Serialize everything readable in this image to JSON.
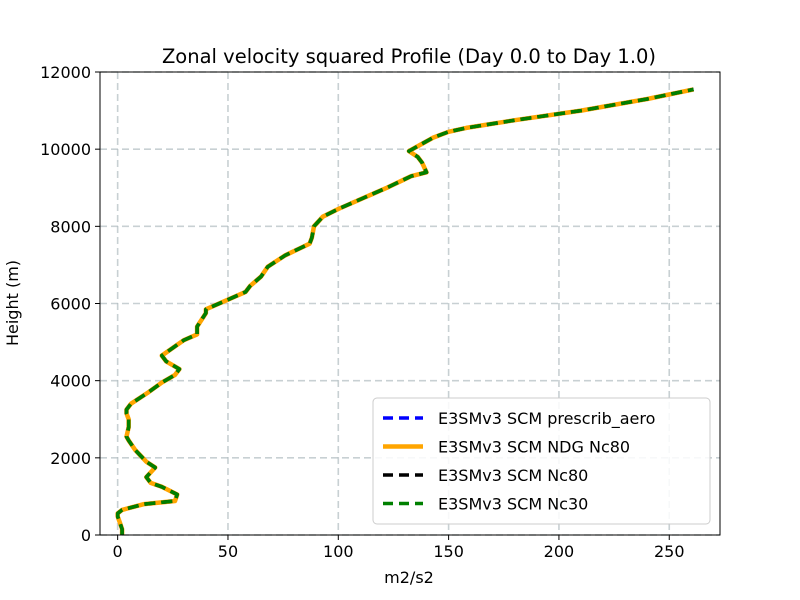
{
  "chart_data": {
    "type": "line",
    "title": "Zonal velocity squared Profile (Day 0.0 to Day 1.0)",
    "xlabel": "m2/s2",
    "ylabel": "Height (m)",
    "xlim": [
      -8,
      273
    ],
    "ylim": [
      0,
      12000
    ],
    "xticks": [
      0,
      50,
      100,
      150,
      200,
      250
    ],
    "yticks": [
      0,
      2000,
      4000,
      6000,
      8000,
      10000,
      12000
    ],
    "grid": true,
    "legend_position": "lower-right",
    "profile": {
      "x": [
        2,
        2,
        1,
        0,
        0,
        2,
        12,
        26,
        27,
        20,
        15,
        13,
        17,
        13,
        8,
        5,
        4,
        5,
        5,
        4,
        4,
        6,
        14,
        20,
        26,
        28,
        22,
        20,
        25,
        30,
        36,
        36,
        40,
        40,
        48,
        58,
        60,
        65,
        68,
        76,
        87,
        88,
        89,
        93,
        100,
        110,
        122,
        133,
        140,
        138,
        136,
        132,
        143,
        150,
        158,
        180,
        210,
        240,
        261
      ],
      "y": [
        0,
        150,
        320,
        480,
        560,
        650,
        800,
        880,
        1050,
        1250,
        1350,
        1500,
        1750,
        1900,
        2200,
        2450,
        2550,
        2800,
        3000,
        3150,
        3250,
        3400,
        3700,
        3950,
        4150,
        4300,
        4500,
        4650,
        4850,
        5050,
        5200,
        5400,
        5750,
        5850,
        6050,
        6300,
        6450,
        6700,
        6950,
        7250,
        7550,
        7700,
        8000,
        8250,
        8450,
        8700,
        9000,
        9300,
        9400,
        9650,
        9800,
        9950,
        10300,
        10450,
        10550,
        10750,
        11000,
        11300,
        11550
      ]
    },
    "series": [
      {
        "name": "E3SMv3 SCM prescrib_aero",
        "color": "#0000ff",
        "style": "dashed"
      },
      {
        "name": "E3SMv3 SCM NDG Nc80",
        "color": "#ffa500",
        "style": "solid"
      },
      {
        "name": "E3SMv3 SCM Nc80",
        "color": "#000000",
        "style": "dashed"
      },
      {
        "name": "E3SMv3 SCM Nc30",
        "color": "#008000",
        "style": "dashed"
      }
    ]
  }
}
